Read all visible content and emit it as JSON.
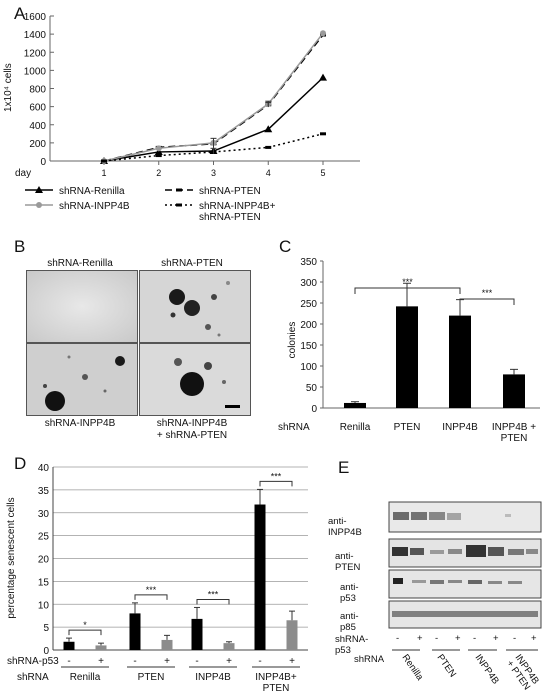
{
  "panels": {
    "A": "A",
    "B": "B",
    "C": "C",
    "D": "D",
    "E": "E"
  },
  "chart_data": [
    {
      "panel": "A",
      "type": "line",
      "xlabel": "day",
      "ylabel": "1x10⁴ cells",
      "x": [
        1,
        2,
        3,
        4,
        5
      ],
      "ylim": [
        0,
        1600
      ],
      "yticks": [
        0,
        200,
        400,
        600,
        800,
        1000,
        1200,
        1400,
        1600
      ],
      "series": [
        {
          "name": "shRNA-Renilla",
          "style": "solid",
          "marker": "triangle",
          "color": "#000000",
          "values": [
            0,
            100,
            110,
            350,
            920
          ]
        },
        {
          "name": "shRNA-PTEN",
          "style": "dash",
          "marker": "dash",
          "color": "#000000",
          "values": [
            0,
            150,
            190,
            620,
            1390
          ]
        },
        {
          "name": "shRNA-INPP4B",
          "style": "solid",
          "marker": "circle",
          "color": "#9a9a9a",
          "values": [
            0,
            140,
            200,
            630,
            1410
          ]
        },
        {
          "name": "shRNA-INPP4B+\nshRNA-PTEN",
          "style": "dot",
          "marker": "dash",
          "color": "#000000",
          "values": [
            0,
            60,
            100,
            150,
            300
          ]
        }
      ],
      "errors": [
        {
          "series": 0,
          "x": 3,
          "err": 30
        },
        {
          "series": 2,
          "x": 3,
          "err": 50
        },
        {
          "series": 2,
          "x": 4,
          "err": 30
        },
        {
          "series": 1,
          "x": 4,
          "err": 25
        }
      ]
    },
    {
      "panel": "C",
      "type": "bar",
      "ylabel": "colonies",
      "xrow_label": "shRNA",
      "categories": [
        "Renilla",
        "PTEN",
        "INPP4B",
        "INPP4B +\nPTEN"
      ],
      "values": [
        12,
        242,
        220,
        80
      ],
      "errors": [
        3,
        55,
        38,
        12
      ],
      "ylim": [
        0,
        350
      ],
      "yticks": [
        0,
        50,
        100,
        150,
        200,
        250,
        300,
        350
      ],
      "significance": [
        {
          "from": 0,
          "to": 2,
          "label": "***"
        },
        {
          "from": 2,
          "to": 3,
          "label": "***"
        }
      ]
    },
    {
      "panel": "D",
      "type": "bar",
      "ylabel": "percentage senescent cells",
      "p53_row_label": "shRNA-p53",
      "shRNA_row_label": "shRNA",
      "groups": [
        "Renilla",
        "PTEN",
        "INPP4B",
        "INPP4B+\nPTEN"
      ],
      "p53_marks": [
        "-",
        "+"
      ],
      "values_minus": [
        1.8,
        8.0,
        6.8,
        31.8
      ],
      "errors_minus": [
        0.8,
        2.3,
        2.5,
        3.3
      ],
      "values_plus": [
        1.0,
        2.2,
        1.5,
        6.5
      ],
      "errors_plus": [
        0.5,
        1.0,
        0.3,
        2.0
      ],
      "colors": {
        "minus": "#000000",
        "plus": "#8c8c8c"
      },
      "ylim": [
        0,
        40
      ],
      "yticks": [
        0,
        5,
        10,
        15,
        20,
        25,
        30,
        35,
        40
      ],
      "significance": [
        "*",
        "***",
        "***",
        "***"
      ]
    }
  ],
  "panel_B": {
    "images": [
      {
        "label": "shRNA-Renilla"
      },
      {
        "label": "shRNA-PTEN"
      },
      {
        "label": "shRNA-INPP4B"
      },
      {
        "label": "shRNA-INPP4B\n+ shRNA-PTEN"
      }
    ]
  },
  "panel_E": {
    "blots": [
      "anti-INPP4B",
      "anti-PTEN",
      "anti-p53",
      "anti-p85"
    ],
    "p53_row_label": "shRNA-p53",
    "p53_marks": [
      "-",
      "+",
      "-",
      "+",
      "-",
      "+",
      "-",
      "+"
    ],
    "shRNA_row_label": "shRNA",
    "lanes": [
      "Renilla",
      "PTEN",
      "INPP4B",
      "INPP4B\n+ PTEN"
    ]
  }
}
